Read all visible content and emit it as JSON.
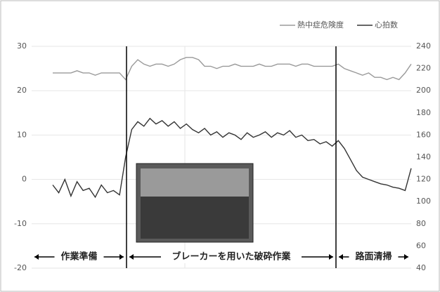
{
  "chart_data": {
    "type": "line",
    "legend": "top-right",
    "grid": true,
    "categories": [
      null,
      null,
      null,
      null,
      null,
      null,
      null,
      null,
      null,
      null,
      null,
      null,
      null,
      null,
      null,
      null,
      null,
      null,
      null,
      null,
      null,
      null,
      null,
      null,
      null,
      null,
      null,
      null,
      null,
      null,
      null,
      null,
      null,
      null,
      null,
      null,
      null,
      null,
      null,
      null,
      null,
      null,
      null,
      null,
      null,
      null,
      null,
      null,
      null,
      null,
      null,
      null,
      null,
      null,
      null,
      null,
      null,
      null,
      null,
      null
    ],
    "ylim": [
      -20,
      30
    ],
    "yticks": [
      -20,
      -10,
      0,
      10,
      20,
      30
    ],
    "y2lim": [
      40,
      240
    ],
    "y2ticks": [
      40,
      60,
      80,
      100,
      120,
      140,
      160,
      180,
      200,
      220,
      240
    ],
    "series": [
      {
        "name": "熱中症危険度",
        "color": "#9a9a9a",
        "axis": "y",
        "values": [
          24,
          24,
          24,
          24,
          24.5,
          24,
          24,
          23.5,
          24,
          24,
          24,
          24,
          22.5,
          25.5,
          27,
          26,
          25.5,
          26,
          26,
          25.5,
          26,
          27,
          27.5,
          27.5,
          27,
          25.5,
          25.5,
          25,
          25.5,
          25.5,
          26,
          25.5,
          25.5,
          25.5,
          26,
          25.5,
          25.5,
          26,
          26,
          26,
          25.5,
          26,
          26,
          25.5,
          25.5,
          25.5,
          25.5,
          26,
          25,
          24.5,
          24,
          23.5,
          24,
          23,
          23,
          22.5,
          23,
          22.5,
          24,
          26
        ]
      },
      {
        "name": "心拍数",
        "color": "#333333",
        "axis": "y2",
        "values": [
          115,
          108,
          120,
          105,
          118,
          110,
          112,
          104,
          115,
          108,
          110,
          106,
          140,
          165,
          172,
          168,
          175,
          170,
          173,
          168,
          172,
          166,
          170,
          165,
          162,
          166,
          160,
          163,
          158,
          162,
          160,
          156,
          162,
          158,
          160,
          163,
          158,
          162,
          160,
          164,
          158,
          160,
          155,
          156,
          152,
          154,
          150,
          155,
          148,
          138,
          128,
          122,
          120,
          118,
          116,
          115,
          113,
          112,
          110,
          130
        ]
      }
    ],
    "annotations": [
      "作業準備",
      "ブレーカーを用いた破砕作業",
      "路面清掃"
    ]
  }
}
